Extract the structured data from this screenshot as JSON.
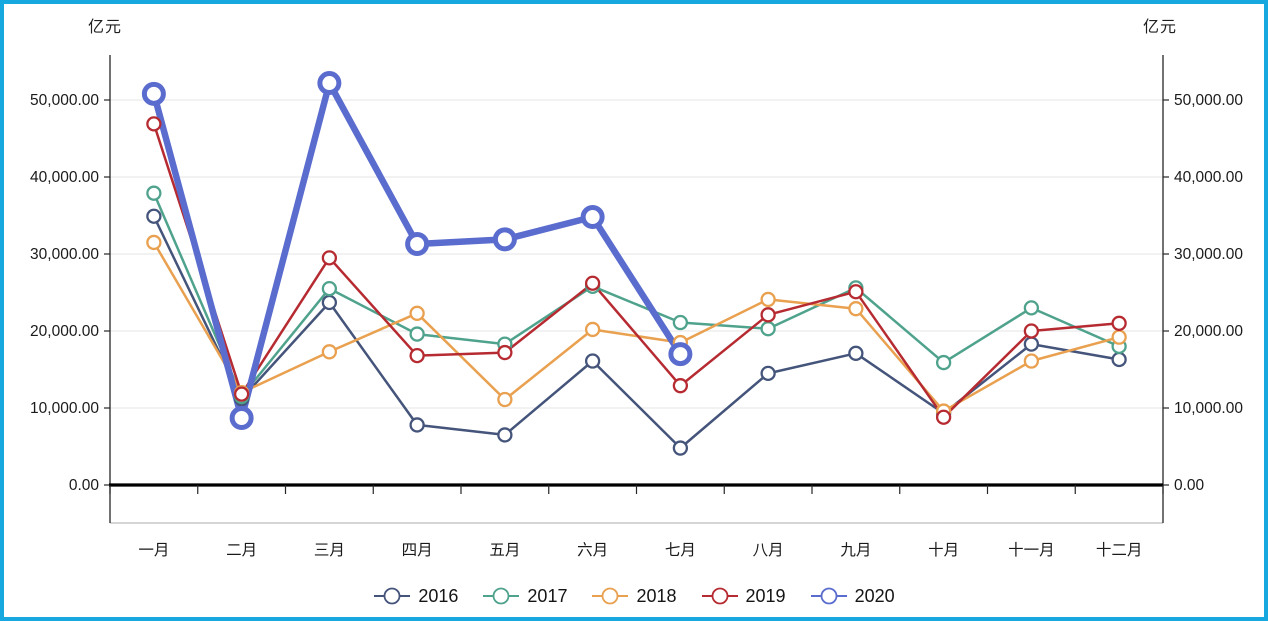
{
  "page": {
    "frame_border_color": "#17a8e0",
    "background_color": "#ffffff"
  },
  "chart": {
    "left_axis_title": "亿元",
    "right_axis_title": "亿元",
    "y_tick_labels": [
      "0.00",
      "10,000.00",
      "20,000.00",
      "30,000.00",
      "40,000.00",
      "50,000.00"
    ]
  },
  "chart_data": {
    "type": "line",
    "title": "",
    "xlabel": "",
    "ylabel": "亿元",
    "dual_y_axis": true,
    "grid": true,
    "legend_position": "bottom",
    "ylim": [
      0,
      55000
    ],
    "y_ticks": [
      0,
      10000,
      20000,
      30000,
      40000,
      50000
    ],
    "categories": [
      "一月",
      "二月",
      "三月",
      "四月",
      "五月",
      "六月",
      "七月",
      "八月",
      "九月",
      "十月",
      "十一月",
      "十二月"
    ],
    "series": [
      {
        "name": "2016",
        "color": "#44547a",
        "values": [
          34900,
          11200,
          23700,
          7800,
          6500,
          16100,
          4800,
          14500,
          17100,
          9300,
          18300,
          16300
        ]
      },
      {
        "name": "2017",
        "color": "#4fa28c",
        "values": [
          37900,
          11500,
          25500,
          19600,
          18300,
          25800,
          21100,
          20300,
          25600,
          15900,
          23000,
          18000
        ]
      },
      {
        "name": "2018",
        "color": "#e9a04f",
        "values": [
          31500,
          12000,
          17300,
          22300,
          11100,
          20200,
          18500,
          24100,
          22900,
          9600,
          16100,
          19200
        ]
      },
      {
        "name": "2019",
        "color": "#b62b31",
        "values": [
          46900,
          11800,
          29500,
          16800,
          17200,
          26200,
          12900,
          22100,
          25100,
          8800,
          20000,
          21000
        ]
      },
      {
        "name": "2020",
        "color": "#5a6cce",
        "emphasis": true,
        "values": [
          50800,
          8700,
          52200,
          31300,
          31900,
          34800,
          17000
        ]
      }
    ]
  }
}
